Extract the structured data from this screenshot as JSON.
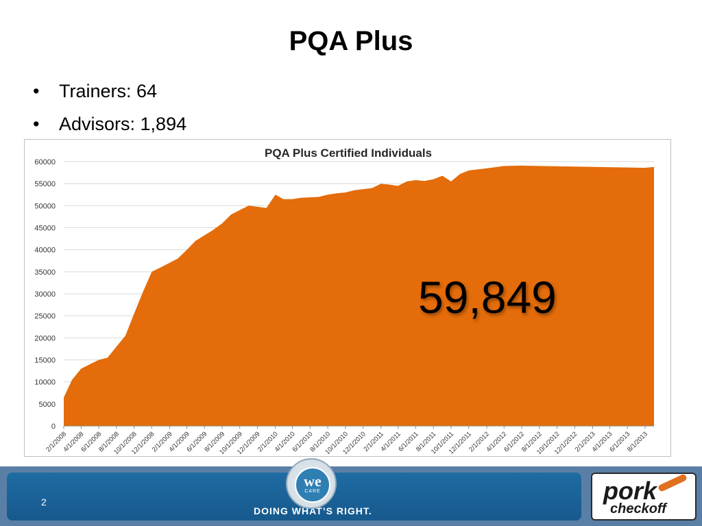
{
  "slide": {
    "title": "PQA Plus",
    "bullets": [
      {
        "label": "Trainers: 64"
      },
      {
        "label": "Advisors: 1,894"
      }
    ],
    "callout": "59,849",
    "page_number": "2"
  },
  "footer": {
    "tagline": "DOING WHAT’S RIGHT.",
    "seal_text": "we",
    "seal_subtext": "CARE",
    "logo_word1": "pork",
    "logo_word2": "checkoff"
  },
  "chart_data": {
    "type": "area",
    "title": "PQA Plus Certified Individuals",
    "xlabel": "",
    "ylabel": "",
    "ylim": [
      0,
      60000
    ],
    "yticks": [
      0,
      5000,
      10000,
      15000,
      20000,
      25000,
      30000,
      35000,
      40000,
      45000,
      50000,
      55000,
      60000
    ],
    "grid": true,
    "color": "#e46c0a",
    "x_tick_labels": [
      "2/1/2008",
      "4/1/2008",
      "6/1/2008",
      "8/1/2008",
      "10/1/2008",
      "12/1/2008",
      "2/1/2009",
      "4/1/2009",
      "6/1/2009",
      "8/1/2009",
      "10/1/2009",
      "12/1/2009",
      "2/1/2010",
      "4/1/2010",
      "6/1/2010",
      "8/1/2010",
      "10/1/2010",
      "12/1/2010",
      "2/1/2011",
      "4/1/2011",
      "6/1/2011",
      "8/1/2011",
      "10/1/2011",
      "12/1/2011",
      "2/1/2012",
      "4/1/2012",
      "6/1/2012",
      "8/1/2012",
      "10/1/2012",
      "12/1/2012",
      "2/1/2013",
      "4/1/2013",
      "6/1/2013",
      "8/1/2013"
    ],
    "values": [
      6500,
      10500,
      13000,
      14000,
      15000,
      15500,
      20500,
      25500,
      30500,
      35000,
      36000,
      38000,
      40000,
      42000,
      44500,
      46000,
      48000,
      49000,
      50000,
      49500,
      52500,
      51500,
      51500,
      51800,
      52000,
      52500,
      52800,
      53000,
      53500,
      54000,
      55000,
      54800,
      54500,
      55500,
      55800,
      55600,
      56000,
      56800,
      55500,
      57200,
      58000,
      58500,
      59000,
      59100,
      58600,
      58800
    ],
    "x": [
      "2/1/2008",
      "3/1/2008",
      "4/1/2008",
      "5/1/2008",
      "6/1/2008",
      "7/1/2008",
      "9/1/2008",
      "10/1/2008",
      "11/1/2008",
      "12/1/2008",
      "1/1/2009",
      "3/1/2009",
      "4/1/2009",
      "5/1/2009",
      "7/1/2009",
      "8/1/2009",
      "9/1/2009",
      "10/1/2009",
      "11/1/2009",
      "1/1/2010",
      "2/1/2010",
      "3/1/2010",
      "4/1/2010",
      "5/1/2010",
      "7/1/2010",
      "8/1/2010",
      "9/1/2010",
      "10/1/2010",
      "11/1/2010",
      "1/1/2011",
      "2/1/2011",
      "3/1/2011",
      "4/1/2011",
      "5/1/2011",
      "6/1/2011",
      "7/1/2011",
      "8/1/2011",
      "9/1/2011",
      "10/1/2011",
      "11/1/2011",
      "12/1/2011",
      "2/1/2012",
      "4/1/2012",
      "6/1/2012",
      "8/1/2013",
      "9/1/2013"
    ]
  }
}
